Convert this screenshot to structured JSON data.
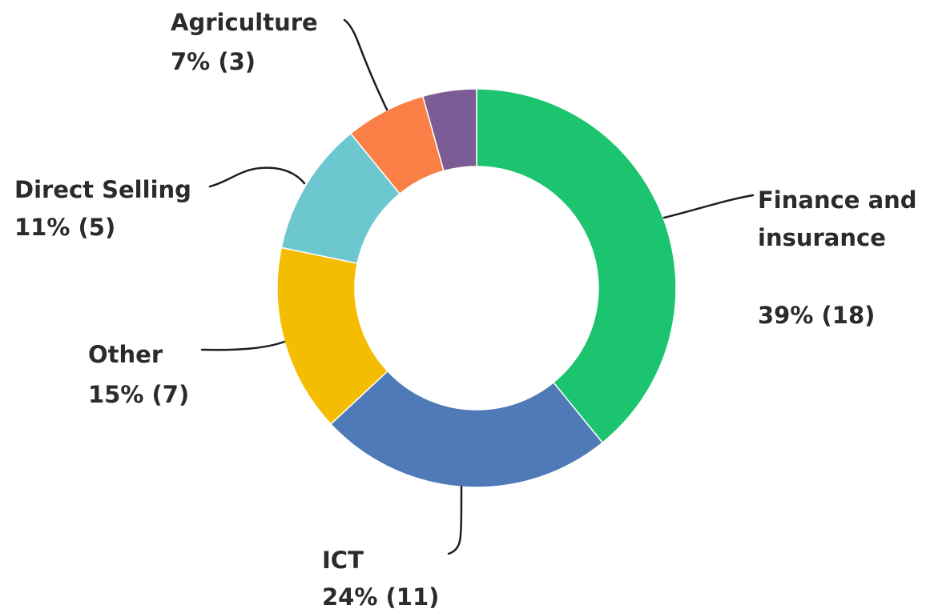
{
  "chart_data": {
    "type": "pie",
    "variant": "donut",
    "legend": "none",
    "slices": [
      {
        "label": "Finance and insurance",
        "value": 18,
        "percent": 39,
        "label_lines": [
          "Finance and",
          "insurance"
        ],
        "value_text": "39% (18)",
        "color": "#1cc46f"
      },
      {
        "label": "ICT",
        "value": 11,
        "percent": 24,
        "label_lines": [
          "ICT"
        ],
        "value_text": "24% (11)",
        "color": "#4f7ab8"
      },
      {
        "label": "Other",
        "value": 7,
        "percent": 15,
        "label_lines": [
          "Other"
        ],
        "value_text": "15% (7)",
        "color": "#f5bd02"
      },
      {
        "label": "Direct Selling",
        "value": 5,
        "percent": 11,
        "label_lines": [
          "Direct Selling"
        ],
        "value_text": "11% (5)",
        "color": "#6cc7cf"
      },
      {
        "label": "Agriculture",
        "value": 3,
        "percent": 7,
        "label_lines": [
          "Agriculture"
        ],
        "value_text": "7% (3)",
        "color": "#fb8048"
      },
      {
        "label": "",
        "value": 2,
        "color": "#7c5c95"
      }
    ]
  }
}
